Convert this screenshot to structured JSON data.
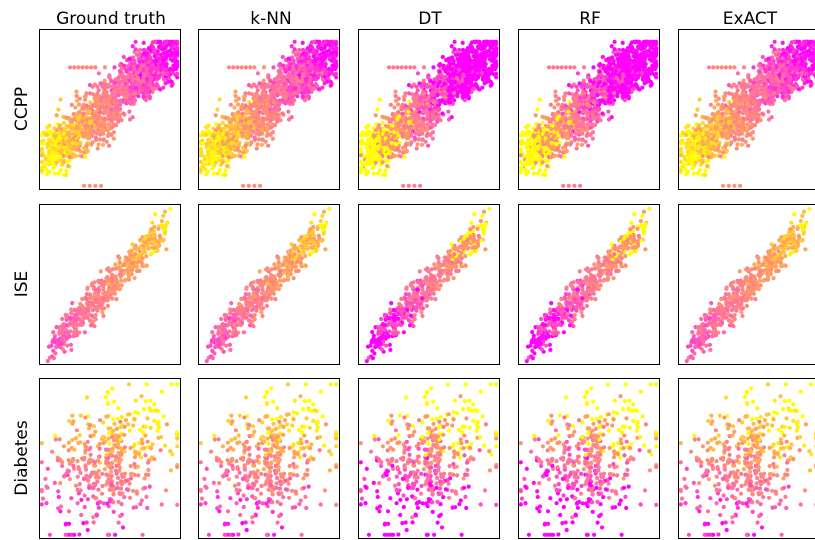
{
  "chart_data": {
    "type": "scatter",
    "layout": "grid",
    "column_titles": [
      "Ground truth",
      "k-NN",
      "DT",
      "RF",
      "ExACT"
    ],
    "row_titles": [
      "CCPP",
      "ISE",
      "Diabetes"
    ],
    "axes_ticks": "none",
    "colormap": [
      "#ffff00",
      "#ff9966",
      "#ff66b0",
      "#ff00ff"
    ],
    "panels": [
      {
        "row": "CCPP",
        "column": "Ground truth",
        "points": 1400,
        "coloring": "continuous"
      },
      {
        "row": "CCPP",
        "column": "k-NN",
        "points": 1400,
        "coloring": "continuous"
      },
      {
        "row": "CCPP",
        "column": "DT",
        "points": 1400,
        "coloring": "piecewise"
      },
      {
        "row": "CCPP",
        "column": "RF",
        "points": 1400,
        "coloring": "piecewise"
      },
      {
        "row": "CCPP",
        "column": "ExACT",
        "points": 1400,
        "coloring": "continuous"
      },
      {
        "row": "ISE",
        "column": "Ground truth",
        "points": 520,
        "coloring": "continuous"
      },
      {
        "row": "ISE",
        "column": "k-NN",
        "points": 520,
        "coloring": "continuous"
      },
      {
        "row": "ISE",
        "column": "DT",
        "points": 520,
        "coloring": "piecewise"
      },
      {
        "row": "ISE",
        "column": "RF",
        "points": 520,
        "coloring": "piecewise"
      },
      {
        "row": "ISE",
        "column": "ExACT",
        "points": 520,
        "coloring": "continuous"
      },
      {
        "row": "Diabetes",
        "column": "Ground truth",
        "points": 440,
        "coloring": "continuous"
      },
      {
        "row": "Diabetes",
        "column": "k-NN",
        "points": 440,
        "coloring": "continuous"
      },
      {
        "row": "Diabetes",
        "column": "DT",
        "points": 440,
        "coloring": "piecewise"
      },
      {
        "row": "Diabetes",
        "column": "RF",
        "points": 440,
        "coloring": "piecewise"
      },
      {
        "row": "Diabetes",
        "column": "ExACT",
        "points": 440,
        "coloring": "continuous"
      }
    ]
  }
}
